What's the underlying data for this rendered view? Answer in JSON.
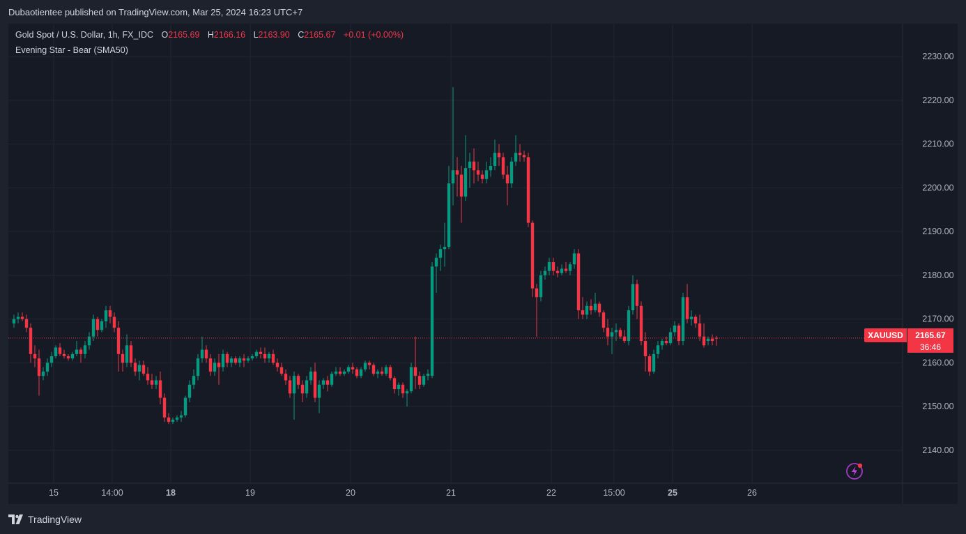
{
  "header": {
    "publisher_line": "Dubaotientee published on TradingView.com, Mar 25, 2024 16:23 UTC+7"
  },
  "legend": {
    "symbol": "Gold Spot / U.S. Dollar, 1h, FX_IDC",
    "open_label": "O",
    "open": "2165.69",
    "high_label": "H",
    "high": "2166.16",
    "low_label": "L",
    "low": "2163.90",
    "close_label": "C",
    "close": "2165.67",
    "change": "+0.01 (+0.00%)",
    "indicator": "Evening Star - Bear (SMA50)"
  },
  "price_tag": {
    "symbol": "XAUUSD",
    "price": "2165.67",
    "countdown": "36:46"
  },
  "footer": {
    "brand": "TradingView"
  },
  "colors": {
    "up": "#089981",
    "down": "#f23645",
    "bg": "#161a25",
    "grid": "#232632",
    "axis_text": "#b2b5be"
  },
  "icons": {
    "alert": "lightning-bolt-icon",
    "logo": "tradingview-logo-icon"
  },
  "chart_data": {
    "type": "candlestick",
    "symbol": "XAUUSD",
    "interval": "1h",
    "last_price": 2165.67,
    "ylim": [
      2132.5,
      2237.5
    ],
    "y_ticks": [
      2140,
      2150,
      2160,
      2170,
      2180,
      2190,
      2200,
      2210,
      2220,
      2230
    ],
    "x_ticks": [
      {
        "label": "15",
        "t": 9.5,
        "bold": false
      },
      {
        "label": "14:00",
        "t": 23.5,
        "bold": false
      },
      {
        "label": "18",
        "t": 37.5,
        "bold": true
      },
      {
        "label": "19",
        "t": 56.5,
        "bold": false
      },
      {
        "label": "20",
        "t": 80.5,
        "bold": false
      },
      {
        "label": "21",
        "t": 104.5,
        "bold": false
      },
      {
        "label": "22",
        "t": 128.5,
        "bold": false
      },
      {
        "label": "15:00",
        "t": 143.5,
        "bold": false
      },
      {
        "label": "25",
        "t": 157.5,
        "bold": true
      },
      {
        "label": "26",
        "t": 176.5,
        "bold": false
      }
    ],
    "grid": true,
    "candles": [
      [
        2169.0,
        2171.0,
        2168.0,
        2170.0
      ],
      [
        2170.0,
        2171.5,
        2169.0,
        2170.5
      ],
      [
        2170.5,
        2171.5,
        2169.5,
        2170.0
      ],
      [
        2170.0,
        2171.0,
        2167.0,
        2168.0
      ],
      [
        2168.0,
        2169.0,
        2160.0,
        2162.0
      ],
      [
        2162.0,
        2164.0,
        2159.0,
        2161.0
      ],
      [
        2161.0,
        2163.0,
        2152.5,
        2157.0
      ],
      [
        2157.0,
        2159.0,
        2156.0,
        2158.0
      ],
      [
        2158.0,
        2161.0,
        2157.0,
        2160.0
      ],
      [
        2160.0,
        2162.5,
        2159.0,
        2161.5
      ],
      [
        2161.5,
        2164.0,
        2161.0,
        2163.5
      ],
      [
        2163.5,
        2164.5,
        2161.5,
        2162.0
      ],
      [
        2162.0,
        2163.0,
        2161.0,
        2161.5
      ],
      [
        2161.5,
        2162.0,
        2160.5,
        2161.0
      ],
      [
        2161.0,
        2162.5,
        2160.5,
        2162.0
      ],
      [
        2162.0,
        2165.0,
        2161.5,
        2163.0
      ],
      [
        2163.0,
        2163.5,
        2160.0,
        2162.0
      ],
      [
        2162.0,
        2165.0,
        2161.0,
        2164.0
      ],
      [
        2164.0,
        2167.0,
        2163.0,
        2166.0
      ],
      [
        2166.0,
        2171.0,
        2165.0,
        2170.0
      ],
      [
        2170.0,
        2170.5,
        2166.0,
        2167.5
      ],
      [
        2167.5,
        2170.0,
        2167.0,
        2169.5
      ],
      [
        2169.5,
        2173.0,
        2168.0,
        2172.0
      ],
      [
        2172.0,
        2173.0,
        2169.0,
        2170.5
      ],
      [
        2170.5,
        2171.5,
        2167.0,
        2168.0
      ],
      [
        2168.0,
        2169.5,
        2158.0,
        2162.0
      ],
      [
        2162.0,
        2163.0,
        2158.0,
        2160.0
      ],
      [
        2160.0,
        2166.5,
        2159.0,
        2164.0
      ],
      [
        2164.0,
        2165.0,
        2159.0,
        2160.0
      ],
      [
        2160.0,
        2161.0,
        2157.0,
        2158.0
      ],
      [
        2158.0,
        2160.5,
        2156.0,
        2159.5
      ],
      [
        2159.5,
        2160.5,
        2157.0,
        2157.5
      ],
      [
        2157.5,
        2159.0,
        2155.0,
        2156.0
      ],
      [
        2156.0,
        2157.5,
        2154.0,
        2155.0
      ],
      [
        2155.0,
        2157.0,
        2154.0,
        2156.0
      ],
      [
        2156.0,
        2158.0,
        2150.5,
        2152.0
      ],
      [
        2152.0,
        2153.0,
        2146.5,
        2147.5
      ],
      [
        2147.5,
        2148.5,
        2146.0,
        2146.5
      ],
      [
        2146.5,
        2147.5,
        2146.0,
        2147.0
      ],
      [
        2147.0,
        2148.0,
        2146.5,
        2147.5
      ],
      [
        2147.5,
        2149.0,
        2146.5,
        2148.0
      ],
      [
        2148.0,
        2152.5,
        2147.5,
        2152.0
      ],
      [
        2152.0,
        2156.0,
        2151.0,
        2155.0
      ],
      [
        2155.0,
        2158.5,
        2154.0,
        2157.0
      ],
      [
        2157.0,
        2162.0,
        2156.0,
        2161.0
      ],
      [
        2161.0,
        2166.0,
        2160.0,
        2163.0
      ],
      [
        2163.0,
        2164.0,
        2160.0,
        2161.0
      ],
      [
        2161.0,
        2162.0,
        2157.0,
        2158.0
      ],
      [
        2158.0,
        2161.0,
        2157.0,
        2160.0
      ],
      [
        2160.0,
        2162.0,
        2155.0,
        2159.0
      ],
      [
        2159.0,
        2163.0,
        2158.0,
        2162.0
      ],
      [
        2162.0,
        2162.5,
        2159.0,
        2160.0
      ],
      [
        2160.0,
        2161.5,
        2159.0,
        2161.0
      ],
      [
        2161.0,
        2161.5,
        2159.5,
        2160.0
      ],
      [
        2160.0,
        2161.5,
        2159.0,
        2161.0
      ],
      [
        2161.0,
        2162.0,
        2159.0,
        2160.5
      ],
      [
        2160.5,
        2161.5,
        2160.0,
        2161.0
      ],
      [
        2161.0,
        2162.0,
        2160.5,
        2161.5
      ],
      [
        2161.5,
        2163.0,
        2161.0,
        2162.5
      ],
      [
        2162.5,
        2163.5,
        2161.0,
        2162.0
      ],
      [
        2162.0,
        2163.5,
        2160.0,
        2161.0
      ],
      [
        2161.0,
        2162.5,
        2160.0,
        2162.0
      ],
      [
        2162.0,
        2163.0,
        2159.5,
        2160.0
      ],
      [
        2160.0,
        2161.0,
        2158.0,
        2159.0
      ],
      [
        2159.0,
        2160.0,
        2157.0,
        2157.5
      ],
      [
        2157.5,
        2158.5,
        2155.0,
        2156.0
      ],
      [
        2156.0,
        2157.0,
        2152.0,
        2153.0
      ],
      [
        2153.0,
        2158.0,
        2147.0,
        2157.0
      ],
      [
        2157.0,
        2157.5,
        2154.0,
        2155.0
      ],
      [
        2155.0,
        2156.0,
        2151.0,
        2153.0
      ],
      [
        2153.0,
        2157.0,
        2152.0,
        2156.0
      ],
      [
        2156.0,
        2159.0,
        2155.0,
        2158.0
      ],
      [
        2158.0,
        2160.0,
        2151.0,
        2152.0
      ],
      [
        2152.0,
        2156.0,
        2148.5,
        2155.0
      ],
      [
        2155.0,
        2156.5,
        2154.0,
        2156.0
      ],
      [
        2156.0,
        2157.0,
        2153.5,
        2155.0
      ],
      [
        2155.0,
        2158.0,
        2154.5,
        2157.5
      ],
      [
        2157.5,
        2159.0,
        2157.0,
        2158.0
      ],
      [
        2158.0,
        2159.0,
        2157.0,
        2157.5
      ],
      [
        2157.5,
        2158.5,
        2157.0,
        2158.0
      ],
      [
        2158.0,
        2159.5,
        2157.5,
        2159.0
      ],
      [
        2159.0,
        2160.0,
        2157.5,
        2158.5
      ],
      [
        2158.5,
        2159.0,
        2156.5,
        2157.0
      ],
      [
        2157.0,
        2159.0,
        2156.5,
        2158.5
      ],
      [
        2158.5,
        2160.5,
        2158.0,
        2160.0
      ],
      [
        2160.0,
        2160.5,
        2158.5,
        2159.5
      ],
      [
        2159.5,
        2160.0,
        2157.0,
        2157.5
      ],
      [
        2157.5,
        2158.5,
        2156.5,
        2158.0
      ],
      [
        2158.0,
        2159.0,
        2157.0,
        2157.5
      ],
      [
        2157.5,
        2159.5,
        2157.0,
        2159.0
      ],
      [
        2159.0,
        2159.5,
        2156.0,
        2156.5
      ],
      [
        2156.5,
        2157.0,
        2153.0,
        2154.0
      ],
      [
        2154.0,
        2155.5,
        2152.5,
        2155.0
      ],
      [
        2155.0,
        2155.5,
        2152.0,
        2153.0
      ],
      [
        2153.0,
        2154.0,
        2150.0,
        2153.5
      ],
      [
        2153.5,
        2160.0,
        2153.0,
        2159.0
      ],
      [
        2159.0,
        2166.0,
        2154.0,
        2157.0
      ],
      [
        2157.0,
        2158.0,
        2154.0,
        2155.0
      ],
      [
        2155.0,
        2157.5,
        2154.5,
        2157.0
      ],
      [
        2157.0,
        2158.5,
        2156.0,
        2157.5
      ],
      [
        2157.0,
        2183.0,
        2156.5,
        2182.0
      ],
      [
        2182.0,
        2185.0,
        2176.0,
        2184.0
      ],
      [
        2184.0,
        2187.0,
        2181.0,
        2186.0
      ],
      [
        2186.0,
        2192.0,
        2182.0,
        2186.5
      ],
      [
        2186.5,
        2205.0,
        2186.0,
        2201.0
      ],
      [
        2201.0,
        2223.0,
        2196.0,
        2204.0
      ],
      [
        2204.0,
        2207.0,
        2198.0,
        2203.0
      ],
      [
        2203.0,
        2205.0,
        2192.0,
        2198.0
      ],
      [
        2198.0,
        2212.0,
        2197.0,
        2204.5
      ],
      [
        2204.5,
        2208.0,
        2200.0,
        2206.0
      ],
      [
        2206.0,
        2209.0,
        2201.0,
        2204.0
      ],
      [
        2204.0,
        2206.0,
        2201.5,
        2203.0
      ],
      [
        2203.0,
        2204.0,
        2201.0,
        2202.0
      ],
      [
        2202.0,
        2206.0,
        2201.0,
        2204.0
      ],
      [
        2204.0,
        2207.0,
        2202.5,
        2205.0
      ],
      [
        2205.0,
        2211.0,
        2204.0,
        2208.0
      ],
      [
        2208.0,
        2210.0,
        2205.0,
        2207.0
      ],
      [
        2207.0,
        2208.0,
        2202.0,
        2203.0
      ],
      [
        2203.0,
        2205.0,
        2196.0,
        2201.0
      ],
      [
        2201.0,
        2207.0,
        2200.0,
        2206.0
      ],
      [
        2206.0,
        2212.0,
        2205.0,
        2208.0
      ],
      [
        2208.0,
        2210.0,
        2206.0,
        2207.5
      ],
      [
        2207.5,
        2208.5,
        2206.0,
        2207.0
      ],
      [
        2207.0,
        2208.0,
        2191.0,
        2192.0
      ],
      [
        2192.0,
        2192.5,
        2175.0,
        2177.0
      ],
      [
        2177.0,
        2178.0,
        2166.0,
        2175.0
      ],
      [
        2175.0,
        2181.0,
        2174.0,
        2180.0
      ],
      [
        2180.0,
        2182.0,
        2179.0,
        2181.0
      ],
      [
        2181.0,
        2184.0,
        2180.0,
        2183.0
      ],
      [
        2183.0,
        2184.0,
        2180.0,
        2181.0
      ],
      [
        2181.0,
        2182.0,
        2179.5,
        2180.5
      ],
      [
        2180.5,
        2182.5,
        2180.0,
        2181.5
      ],
      [
        2181.5,
        2183.0,
        2180.5,
        2181.0
      ],
      [
        2181.0,
        2183.0,
        2180.0,
        2182.5
      ],
      [
        2182.5,
        2186.0,
        2181.5,
        2185.0
      ],
      [
        2185.0,
        2186.0,
        2170.0,
        2172.0
      ],
      [
        2172.0,
        2175.0,
        2170.0,
        2171.0
      ],
      [
        2171.0,
        2174.0,
        2170.0,
        2173.0
      ],
      [
        2173.0,
        2174.5,
        2171.0,
        2172.0
      ],
      [
        2172.0,
        2176.0,
        2171.5,
        2173.5
      ],
      [
        2173.5,
        2174.0,
        2170.5,
        2171.5
      ],
      [
        2171.5,
        2172.0,
        2167.0,
        2168.0
      ],
      [
        2168.0,
        2170.0,
        2164.0,
        2166.0
      ],
      [
        2166.0,
        2168.0,
        2162.0,
        2167.0
      ],
      [
        2167.0,
        2169.0,
        2165.0,
        2167.5
      ],
      [
        2167.5,
        2168.0,
        2165.5,
        2166.0
      ],
      [
        2166.0,
        2167.5,
        2164.5,
        2165.0
      ],
      [
        2165.0,
        2173.0,
        2164.0,
        2172.0
      ],
      [
        2172.0,
        2180.0,
        2171.0,
        2178.0
      ],
      [
        2178.0,
        2179.0,
        2170.0,
        2173.0
      ],
      [
        2173.0,
        2174.0,
        2164.0,
        2165.0
      ],
      [
        2165.0,
        2167.0,
        2158.0,
        2161.5
      ],
      [
        2161.5,
        2162.0,
        2157.0,
        2158.0
      ],
      [
        2158.0,
        2163.0,
        2157.5,
        2162.0
      ],
      [
        2162.0,
        2165.0,
        2161.0,
        2164.0
      ],
      [
        2164.0,
        2165.5,
        2163.0,
        2165.0
      ],
      [
        2165.0,
        2166.0,
        2164.0,
        2164.5
      ],
      [
        2164.5,
        2168.0,
        2164.0,
        2167.0
      ],
      [
        2167.0,
        2169.5,
        2166.0,
        2168.5
      ],
      [
        2168.5,
        2169.0,
        2164.0,
        2165.0
      ],
      [
        2165.0,
        2176.0,
        2164.0,
        2175.0
      ],
      [
        2175.0,
        2178.0,
        2169.0,
        2170.0
      ],
      [
        2170.0,
        2172.0,
        2168.5,
        2170.5
      ],
      [
        2170.5,
        2171.0,
        2168.0,
        2169.0
      ],
      [
        2169.0,
        2171.0,
        2165.0,
        2166.0
      ],
      [
        2166.0,
        2169.0,
        2163.5,
        2164.0
      ],
      [
        2165.0,
        2166.0,
        2164.0,
        2165.5
      ],
      [
        2165.5,
        2166.5,
        2164.0,
        2165.0
      ],
      [
        2165.69,
        2166.16,
        2163.9,
        2165.67
      ]
    ]
  }
}
